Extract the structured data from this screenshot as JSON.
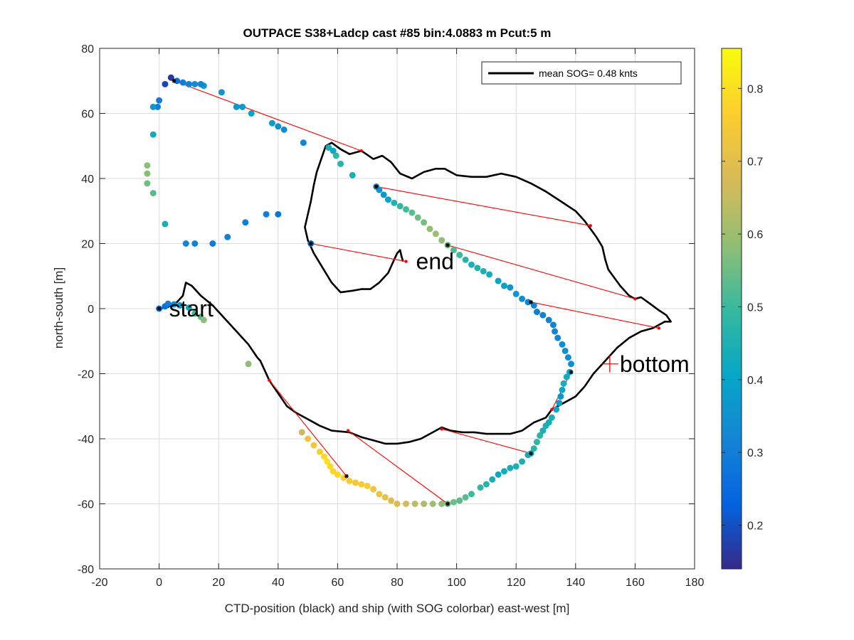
{
  "chart_data": {
    "type": "scatter",
    "title": "OUTPACE S38+Ladcp cast #85 bin:4.0883 m  Pcut:5 m",
    "xlabel": "CTD-position (black) and ship (with SOG colorbar) east-west [m]",
    "ylabel": "north-south [m]",
    "xlim": [
      -20,
      180
    ],
    "ylim": [
      -80,
      80
    ],
    "xticks": [
      -20,
      0,
      20,
      40,
      60,
      80,
      100,
      120,
      140,
      160,
      180
    ],
    "yticks": [
      -80,
      -60,
      -40,
      -20,
      0,
      20,
      40,
      60,
      80
    ],
    "grid": true,
    "legend": {
      "label": "mean SOG=  0.48 knts",
      "position": "top-right"
    },
    "colorbar": {
      "min": 0.14,
      "max": 0.855,
      "ticks": [
        0.2,
        0.3,
        0.4,
        0.5,
        0.6,
        0.7,
        0.8
      ],
      "colors": [
        "#352a87",
        "#0363e1",
        "#1485d4",
        "#06a7c6",
        "#38b99e",
        "#92bf73",
        "#d9ba56",
        "#fcce2e",
        "#f9fb0e"
      ]
    },
    "annotations": [
      {
        "text": "start",
        "x": 0,
        "y": 0
      },
      {
        "text": "end",
        "x": 83,
        "y": 14.5
      },
      {
        "text": "bottom",
        "x": 151.5,
        "y": -17
      }
    ],
    "ctd_track": [
      [
        0,
        0
      ],
      [
        3,
        0.5
      ],
      [
        6,
        2
      ],
      [
        8,
        4
      ],
      [
        9,
        8
      ],
      [
        11,
        7
      ],
      [
        14,
        4
      ],
      [
        18,
        1
      ],
      [
        22,
        -3
      ],
      [
        26,
        -7
      ],
      [
        30,
        -11
      ],
      [
        33,
        -15
      ],
      [
        34,
        -16
      ],
      [
        35,
        -18
      ],
      [
        37,
        -22
      ],
      [
        40,
        -26
      ],
      [
        43,
        -30
      ],
      [
        46,
        -32
      ],
      [
        50,
        -34
      ],
      [
        54,
        -36
      ],
      [
        58,
        -37.5
      ],
      [
        64,
        -38
      ],
      [
        68,
        -39.5
      ],
      [
        72,
        -40.5
      ],
      [
        76,
        -41.5
      ],
      [
        80,
        -41.5
      ],
      [
        84,
        -41
      ],
      [
        88,
        -40
      ],
      [
        92,
        -38
      ],
      [
        95,
        -36.5
      ],
      [
        98,
        -37.5
      ],
      [
        102,
        -38
      ],
      [
        106,
        -38
      ],
      [
        110,
        -38.5
      ],
      [
        114,
        -38.5
      ],
      [
        118,
        -38.5
      ],
      [
        122,
        -37.5
      ],
      [
        126,
        -35
      ],
      [
        130,
        -33.5
      ],
      [
        132,
        -31
      ],
      [
        136,
        -29
      ],
      [
        140,
        -27
      ],
      [
        143,
        -24
      ],
      [
        146,
        -20
      ],
      [
        150,
        -16
      ],
      [
        154,
        -12
      ],
      [
        158,
        -9
      ],
      [
        162,
        -7
      ],
      [
        166,
        -6
      ],
      [
        168,
        -5
      ],
      [
        170,
        -4
      ],
      [
        172,
        -4
      ],
      [
        170.5,
        -2
      ],
      [
        168,
        -0.5
      ],
      [
        165,
        1.5
      ],
      [
        162,
        3.5
      ],
      [
        160,
        3
      ],
      [
        158,
        4
      ],
      [
        155,
        7
      ],
      [
        151,
        12
      ],
      [
        150,
        15
      ],
      [
        149,
        19
      ],
      [
        147,
        22
      ],
      [
        145,
        24.5
      ],
      [
        143,
        27
      ],
      [
        140,
        30
      ],
      [
        135,
        33
      ],
      [
        130,
        36
      ],
      [
        125,
        38.5
      ],
      [
        120,
        40.5
      ],
      [
        115,
        41.5
      ],
      [
        110,
        40.5
      ],
      [
        105,
        40.5
      ],
      [
        100,
        41
      ],
      [
        96,
        43
      ],
      [
        93,
        43
      ],
      [
        89,
        42
      ],
      [
        85,
        40
      ],
      [
        81,
        41.5
      ],
      [
        78,
        45
      ],
      [
        75,
        47
      ],
      [
        72,
        46
      ],
      [
        68,
        48.5
      ],
      [
        64,
        47.5
      ],
      [
        61,
        49
      ],
      [
        58,
        51
      ],
      [
        56,
        50
      ],
      [
        54.5,
        46
      ],
      [
        53,
        42
      ],
      [
        52,
        38
      ],
      [
        51,
        33
      ],
      [
        50,
        29
      ],
      [
        49,
        25
      ],
      [
        50,
        21
      ],
      [
        52,
        17
      ],
      [
        55,
        12.5
      ],
      [
        58,
        8
      ],
      [
        61,
        5
      ],
      [
        65,
        5.5
      ],
      [
        68,
        6
      ],
      [
        71,
        6
      ],
      [
        74,
        8
      ],
      [
        77,
        11
      ],
      [
        79,
        15
      ],
      [
        80,
        17
      ],
      [
        81,
        18
      ],
      [
        81.5,
        16
      ],
      [
        82,
        14.5
      ]
    ],
    "ship_points": [
      [
        0,
        0,
        0.27
      ],
      [
        2,
        0.7,
        0.27
      ],
      [
        3,
        1.5,
        0.3
      ],
      [
        5,
        1.3,
        0.33
      ],
      [
        7,
        1,
        0.37
      ],
      [
        10,
        0.3,
        0.42
      ],
      [
        12,
        -1.5,
        0.5
      ],
      [
        14,
        -2.5,
        0.53
      ],
      [
        15,
        -3.5,
        0.58
      ],
      [
        30,
        -17,
        0.58
      ],
      [
        48,
        -38,
        0.66
      ],
      [
        50,
        -40,
        0.72
      ],
      [
        52,
        -42,
        0.74
      ],
      [
        54,
        -44,
        0.77
      ],
      [
        55.5,
        -45.5,
        0.79
      ],
      [
        56.5,
        -47,
        0.8
      ],
      [
        57.5,
        -48.5,
        0.79
      ],
      [
        58.5,
        -50,
        0.78
      ],
      [
        60,
        -51,
        0.78
      ],
      [
        62,
        -52,
        0.77
      ],
      [
        64,
        -53,
        0.75
      ],
      [
        66,
        -53.5,
        0.74
      ],
      [
        68,
        -54,
        0.75
      ],
      [
        70,
        -54.5,
        0.75
      ],
      [
        72,
        -55.5,
        0.73
      ],
      [
        74,
        -57,
        0.72
      ],
      [
        76,
        -58,
        0.71
      ],
      [
        78,
        -59,
        0.69
      ],
      [
        80,
        -60,
        0.68
      ],
      [
        83,
        -60,
        0.67
      ],
      [
        86,
        -60,
        0.64
      ],
      [
        89,
        -60,
        0.62
      ],
      [
        92,
        -60,
        0.6
      ],
      [
        95,
        -60,
        0.58
      ],
      [
        97,
        -60,
        0.56
      ],
      [
        99,
        -59.5,
        0.55
      ],
      [
        101,
        -59,
        0.53
      ],
      [
        103,
        -58,
        0.53
      ],
      [
        105,
        -57,
        0.5
      ],
      [
        108,
        -55,
        0.49
      ],
      [
        110,
        -54,
        0.47
      ],
      [
        112,
        -52.5,
        0.44
      ],
      [
        114,
        -51,
        0.42
      ],
      [
        116,
        -50,
        0.43
      ],
      [
        118,
        -49,
        0.44
      ],
      [
        120,
        -48.5,
        0.45
      ],
      [
        122,
        -47,
        0.45
      ],
      [
        124,
        -45,
        0.43
      ],
      [
        125,
        -44.5,
        0.45
      ],
      [
        126,
        -43,
        0.47
      ],
      [
        127,
        -41,
        0.48
      ],
      [
        128,
        -39,
        0.48
      ],
      [
        129,
        -37.5,
        0.45
      ],
      [
        130,
        -36,
        0.45
      ],
      [
        131,
        -35,
        0.44
      ],
      [
        132,
        -33.5,
        0.45
      ],
      [
        133.5,
        -31,
        0.41
      ],
      [
        134.5,
        -29,
        0.38
      ],
      [
        135,
        -27,
        0.36
      ],
      [
        135.5,
        -25,
        0.41
      ],
      [
        136,
        -23,
        0.44
      ],
      [
        137,
        -21,
        0.43
      ],
      [
        138,
        -19.5,
        0.42
      ],
      [
        138.5,
        -17,
        0.34
      ],
      [
        137.5,
        -15,
        0.33
      ],
      [
        136.5,
        -13,
        0.35
      ],
      [
        135.5,
        -11,
        0.34
      ],
      [
        134,
        -9,
        0.32
      ],
      [
        133,
        -7,
        0.32
      ],
      [
        132.5,
        -5,
        0.31
      ],
      [
        131,
        -3.5,
        0.31
      ],
      [
        129,
        -2,
        0.31
      ],
      [
        127,
        -1,
        0.3
      ],
      [
        126,
        1,
        0.32
      ],
      [
        124,
        2,
        0.31
      ],
      [
        122,
        3,
        0.34
      ],
      [
        120,
        4.5,
        0.37
      ],
      [
        118,
        6.5,
        0.36
      ],
      [
        116,
        7,
        0.39
      ],
      [
        114,
        8.5,
        0.4
      ],
      [
        111,
        10.5,
        0.43
      ],
      [
        109,
        11.5,
        0.45
      ],
      [
        107,
        12.5,
        0.46
      ],
      [
        105,
        13.5,
        0.45
      ],
      [
        103,
        15,
        0.47
      ],
      [
        101,
        16.5,
        0.5
      ],
      [
        99,
        18,
        0.52
      ],
      [
        97,
        19.5,
        0.55
      ],
      [
        95,
        21,
        0.58
      ],
      [
        93,
        23,
        0.6
      ],
      [
        91,
        24.5,
        0.59
      ],
      [
        89,
        26.5,
        0.56
      ],
      [
        87,
        28,
        0.55
      ],
      [
        85,
        29.5,
        0.53
      ],
      [
        83,
        30.5,
        0.51
      ],
      [
        81,
        31.5,
        0.49
      ],
      [
        79,
        32.5,
        0.46
      ],
      [
        77,
        33.5,
        0.4
      ],
      [
        75.5,
        35,
        0.37
      ],
      [
        74,
        36.5,
        0.35
      ],
      [
        73,
        37.5,
        0.34
      ],
      [
        65,
        41,
        0.45
      ],
      [
        61,
        44.5,
        0.47
      ],
      [
        59.5,
        47,
        0.49
      ],
      [
        58.5,
        48.5,
        0.42
      ],
      [
        57,
        49.5,
        0.44
      ],
      [
        48.5,
        51,
        0.32
      ],
      [
        42,
        55,
        0.33
      ],
      [
        40,
        56,
        0.35
      ],
      [
        38,
        57,
        0.38
      ],
      [
        31,
        60,
        0.4
      ],
      [
        28,
        62,
        0.38
      ],
      [
        26,
        62,
        0.37
      ],
      [
        21,
        66.5,
        0.36
      ],
      [
        15,
        68.5,
        0.37
      ],
      [
        14,
        69,
        0.32
      ],
      [
        12,
        69,
        0.33
      ],
      [
        10,
        69,
        0.31
      ],
      [
        8,
        69.5,
        0.3
      ],
      [
        6,
        70,
        0.26
      ],
      [
        4,
        71,
        0.16
      ],
      [
        2,
        69,
        0.18
      ],
      [
        0,
        64,
        0.3
      ],
      [
        -0.5,
        62,
        0.3
      ],
      [
        -2,
        62,
        0.36
      ],
      [
        -2,
        53.5,
        0.43
      ],
      [
        -4,
        44,
        0.58
      ],
      [
        -4,
        41.5,
        0.58
      ],
      [
        -4,
        38.5,
        0.55
      ],
      [
        -2,
        35.5,
        0.53
      ],
      [
        2,
        26,
        0.44
      ],
      [
        9,
        20,
        0.32
      ],
      [
        12,
        20,
        0.31
      ],
      [
        18,
        20,
        0.29
      ],
      [
        23,
        22,
        0.31
      ],
      [
        29,
        26.5,
        0.3
      ],
      [
        36,
        29,
        0.3
      ],
      [
        40,
        29,
        0.28
      ],
      [
        51,
        20,
        0.25
      ]
    ],
    "ship_black_markers": [
      [
        0,
        0
      ],
      [
        5,
        70
      ],
      [
        73,
        37.5
      ],
      [
        97,
        19.5
      ],
      [
        125,
        2
      ],
      [
        138.5,
        -19.5
      ],
      [
        125,
        -44.5
      ],
      [
        97,
        -60
      ],
      [
        63,
        -51.5
      ],
      [
        51,
        20
      ]
    ],
    "connector_lines": [
      {
        "ship": [
          5,
          70
        ],
        "ctd": [
          68,
          48.5
        ]
      },
      {
        "ship": [
          73,
          37.5
        ],
        "ctd": [
          145,
          25.5
        ]
      },
      {
        "ship": [
          97,
          19.5
        ],
        "ctd": [
          160,
          3
        ]
      },
      {
        "ship": [
          125,
          2
        ],
        "ctd": [
          168,
          -6
        ]
      },
      {
        "ship": [
          138.5,
          -19.5
        ],
        "ctd": [
          132,
          -31
        ]
      },
      {
        "ship": [
          125,
          -44.5
        ],
        "ctd": [
          95,
          -37
        ]
      },
      {
        "ship": [
          97,
          -60
        ],
        "ctd": [
          63.5,
          -37.5
        ]
      },
      {
        "ship": [
          63,
          -51.5
        ],
        "ctd": [
          37,
          -22
        ]
      },
      {
        "ship": [
          51,
          20
        ],
        "ctd": [
          83,
          14.5
        ]
      }
    ],
    "bottom_marker": [
      151.5,
      -17
    ]
  }
}
